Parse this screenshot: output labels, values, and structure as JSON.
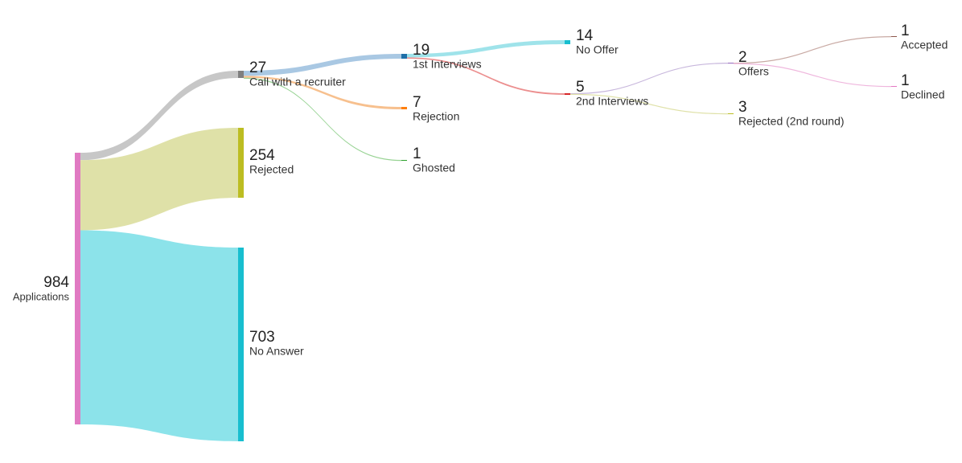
{
  "chart_data": {
    "type": "sankey",
    "nodes": [
      {
        "id": "applications",
        "label": "Applications",
        "value": 984,
        "color": "#e07ac2"
      },
      {
        "id": "call",
        "label": "Call with a recruiter",
        "value": 27,
        "color": "#7f7f7f"
      },
      {
        "id": "rejected",
        "label": "Rejected",
        "value": 254,
        "color": "#bcbd22"
      },
      {
        "id": "no_answer",
        "label": "No Answer",
        "value": 703,
        "color": "#17becf"
      },
      {
        "id": "first_interviews",
        "label": "1st Interviews",
        "value": 19,
        "color": "#1f6fa8"
      },
      {
        "id": "rejection",
        "label": "Rejection",
        "value": 7,
        "color": "#ff7f0e"
      },
      {
        "id": "ghosted",
        "label": "Ghosted",
        "value": 1,
        "color": "#2ca02c"
      },
      {
        "id": "no_offer",
        "label": "No Offer",
        "value": 14,
        "color": "#17becf"
      },
      {
        "id": "second_interviews",
        "label": "2nd Interviews",
        "value": 5,
        "color": "#d62728"
      },
      {
        "id": "offers",
        "label": "Offers",
        "value": 2,
        "color": "#9467bd"
      },
      {
        "id": "rejected_2nd",
        "label": "Rejected (2nd round)",
        "value": 3,
        "color": "#bcbd22"
      },
      {
        "id": "accepted",
        "label": "Accepted",
        "value": 1,
        "color": "#8c564b"
      },
      {
        "id": "declined",
        "label": "Declined",
        "value": 1,
        "color": "#e377c2"
      }
    ],
    "links": [
      {
        "source": "applications",
        "target": "call",
        "value": 27,
        "color": "#c7c7c7"
      },
      {
        "source": "applications",
        "target": "rejected",
        "value": 254,
        "color": "#dfe1a8"
      },
      {
        "source": "applications",
        "target": "no_answer",
        "value": 703,
        "color": "#8ce3ea"
      },
      {
        "source": "call",
        "target": "first_interviews",
        "value": 19,
        "color": "#a9c8e3"
      },
      {
        "source": "call",
        "target": "rejection",
        "value": 7,
        "color": "#f7c08e"
      },
      {
        "source": "call",
        "target": "ghosted",
        "value": 1,
        "color": "#98d394"
      },
      {
        "source": "first_interviews",
        "target": "no_offer",
        "value": 14,
        "color": "#9fe3ea"
      },
      {
        "source": "first_interviews",
        "target": "second_interviews",
        "value": 5,
        "color": "#ec8f8f"
      },
      {
        "source": "second_interviews",
        "target": "offers",
        "value": 2,
        "color": "#c7b6dc"
      },
      {
        "source": "second_interviews",
        "target": "rejected_2nd",
        "value": 3,
        "color": "#dfe1a8"
      },
      {
        "source": "offers",
        "target": "accepted",
        "value": 1,
        "color": "#c9aaa4"
      },
      {
        "source": "offers",
        "target": "declined",
        "value": 1,
        "color": "#efb6dd"
      }
    ]
  }
}
